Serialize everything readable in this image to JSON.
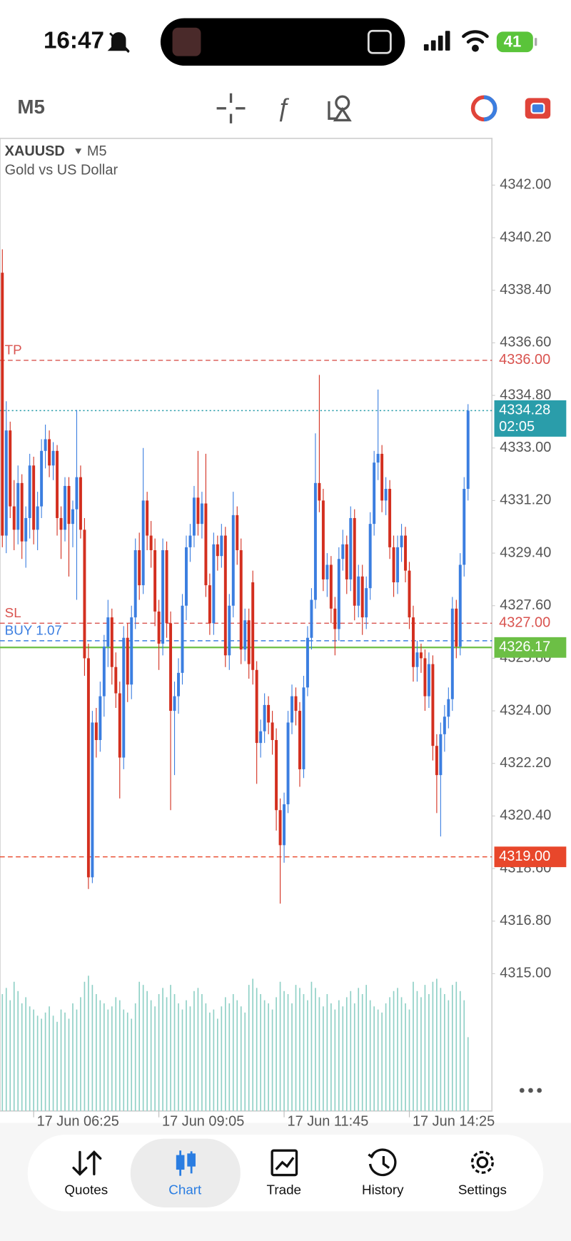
{
  "status_bar": {
    "time": "16:47",
    "battery": "41"
  },
  "toolbar": {
    "timeframe": "M5"
  },
  "chart_data": {
    "type": "candlestick",
    "symbol": "XAUUSD",
    "timeframe": "M5",
    "description": "Gold vs US Dollar",
    "colors": {
      "up": "#3b7ee0",
      "down": "#d32f1f",
      "volume": "#8fd0c6"
    },
    "xlim": [
      -0.6,
      125.1
    ],
    "xticks": [
      {
        "value": 8,
        "label": "17 Jun 06:25"
      },
      {
        "value": 40,
        "label": "17 Jun 09:05"
      },
      {
        "value": 72,
        "label": "17 Jun 11:45"
      },
      {
        "value": 104,
        "label": "17 Jun 14:25"
      }
    ],
    "ylim": [
      4310.3,
      4343.6
    ],
    "yticks": [
      {
        "value": 4342,
        "label": "4342.00"
      },
      {
        "value": 4340.2,
        "label": "4340.20"
      },
      {
        "value": 4338.4,
        "label": "4338.40"
      },
      {
        "value": 4336.6,
        "label": "4336.60"
      },
      {
        "value": 4334.8,
        "label": "4334.80"
      },
      {
        "value": 4333,
        "label": "4333.00"
      },
      {
        "value": 4331.2,
        "label": "4331.20"
      },
      {
        "value": 4329.4,
        "label": "4329.40"
      },
      {
        "value": 4327.6,
        "label": "4327.60"
      },
      {
        "value": 4325.8,
        "label": "4325.80"
      },
      {
        "value": 4324,
        "label": "4324.00"
      },
      {
        "value": 4322.2,
        "label": "4322.20"
      },
      {
        "value": 4320.4,
        "label": "4320.40"
      },
      {
        "value": 4318.6,
        "label": "4318.60"
      },
      {
        "value": 4316.8,
        "label": "4316.80"
      },
      {
        "value": 4315,
        "label": "4315.00"
      }
    ],
    "candles": [
      [
        4339.0,
        4339.8,
        4329.6,
        4330.0
      ],
      [
        4330.0,
        4334.6,
        4329.4,
        4333.6
      ],
      [
        4333.6,
        4333.9,
        4330.6,
        4331.0
      ],
      [
        4331.0,
        4331.9,
        4329.5,
        4330.2
      ],
      [
        4330.2,
        4332.4,
        4329.7,
        4331.8
      ],
      [
        4331.8,
        4332.1,
        4329.2,
        4329.8
      ],
      [
        4329.8,
        4331.0,
        4328.9,
        4330.6
      ],
      [
        4330.6,
        4332.8,
        4329.9,
        4332.4
      ],
      [
        4332.4,
        4332.7,
        4329.7,
        4330.2
      ],
      [
        4330.2,
        4331.5,
        4329.5,
        4331.0
      ],
      [
        4331.0,
        4333.3,
        4330.6,
        4332.9
      ],
      [
        4332.9,
        4333.8,
        4332.3,
        4333.3
      ],
      [
        4333.3,
        4333.6,
        4332.0,
        4332.4
      ],
      [
        4332.4,
        4333.2,
        4331.9,
        4332.9
      ],
      [
        4332.9,
        4333.1,
        4330.0,
        4330.6
      ],
      [
        4330.6,
        4331.0,
        4329.2,
        4330.2
      ],
      [
        4330.2,
        4332.0,
        4329.8,
        4331.7
      ],
      [
        4331.7,
        4332.0,
        4328.6,
        4330.4
      ],
      [
        4330.4,
        4331.2,
        4329.6,
        4330.9
      ],
      [
        4330.9,
        4334.3,
        4327.8,
        4332.0
      ],
      [
        4332.0,
        4332.4,
        4329.9,
        4330.2
      ],
      [
        4330.2,
        4330.6,
        4325.2,
        4325.8
      ],
      [
        4325.8,
        4326.3,
        4317.9,
        4318.3
      ],
      [
        4318.3,
        4324.0,
        4318.1,
        4323.6
      ],
      [
        4323.6,
        4324.1,
        4322.4,
        4323.0
      ],
      [
        4323.0,
        4325.0,
        4322.6,
        4324.5
      ],
      [
        4324.5,
        4326.6,
        4323.8,
        4326.2
      ],
      [
        4326.2,
        4327.8,
        4325.5,
        4327.2
      ],
      [
        4327.2,
        4327.5,
        4324.9,
        4325.5
      ],
      [
        4325.5,
        4326.0,
        4324.1,
        4324.6
      ],
      [
        4324.6,
        4325.0,
        4321.0,
        4322.4
      ],
      [
        4322.4,
        4326.9,
        4322.0,
        4326.5
      ],
      [
        4326.5,
        4327.0,
        4324.3,
        4324.9
      ],
      [
        4324.9,
        4327.6,
        4324.4,
        4327.2
      ],
      [
        4327.2,
        4329.9,
        4326.8,
        4329.5
      ],
      [
        4329.5,
        4330.1,
        4327.8,
        4328.3
      ],
      [
        4328.3,
        4333.0,
        4328.0,
        4331.2
      ],
      [
        4331.2,
        4331.5,
        4329.5,
        4330.0
      ],
      [
        4330.0,
        4330.5,
        4328.9,
        4329.5
      ],
      [
        4329.5,
        4329.9,
        4326.9,
        4327.4
      ],
      [
        4327.4,
        4327.8,
        4325.4,
        4326.3
      ],
      [
        4326.3,
        4329.9,
        4325.9,
        4329.5
      ],
      [
        4329.5,
        4329.8,
        4326.5,
        4327.0
      ],
      [
        4327.0,
        4327.4,
        4320.6,
        4324.0
      ],
      [
        4324.0,
        4325.0,
        4321.8,
        4324.5
      ],
      [
        4324.5,
        4325.8,
        4323.9,
        4325.3
      ],
      [
        4325.3,
        4328.0,
        4324.9,
        4327.6
      ],
      [
        4327.6,
        4330.0,
        4327.1,
        4329.6
      ],
      [
        4329.6,
        4330.4,
        4329.1,
        4330.0
      ],
      [
        4330.0,
        4331.7,
        4329.6,
        4331.3
      ],
      [
        4331.3,
        4332.9,
        4330.0,
        4330.4
      ],
      [
        4330.4,
        4331.5,
        4329.9,
        4331.1
      ],
      [
        4331.1,
        4332.8,
        4327.9,
        4328.3
      ],
      [
        4328.3,
        4328.7,
        4326.6,
        4327.0
      ],
      [
        4327.0,
        4330.1,
        4326.6,
        4329.7
      ],
      [
        4329.7,
        4330.0,
        4328.8,
        4329.3
      ],
      [
        4329.3,
        4330.4,
        4328.9,
        4330.0
      ],
      [
        4330.0,
        4330.3,
        4325.5,
        4325.9
      ],
      [
        4325.9,
        4328.0,
        4325.4,
        4327.6
      ],
      [
        4327.6,
        4331.5,
        4327.2,
        4330.7
      ],
      [
        4330.7,
        4331.0,
        4329.0,
        4329.5
      ],
      [
        4329.5,
        4329.9,
        4325.6,
        4326.1
      ],
      [
        4326.1,
        4327.5,
        4325.7,
        4327.1
      ],
      [
        4327.1,
        4327.5,
        4325.1,
        4325.6
      ],
      [
        4328.4,
        4328.8,
        4324.9,
        4325.4
      ],
      [
        4325.4,
        4325.7,
        4321.5,
        4322.9
      ],
      [
        4322.9,
        4323.7,
        4322.4,
        4323.3
      ],
      [
        4323.3,
        4324.6,
        4322.9,
        4324.2
      ],
      [
        4324.2,
        4324.5,
        4323.2,
        4323.6
      ],
      [
        4323.6,
        4324.0,
        4322.5,
        4323.0
      ],
      [
        4323.0,
        4323.4,
        4319.9,
        4320.6
      ],
      [
        4320.6,
        4321.0,
        4317.4,
        4319.4
      ],
      [
        4319.4,
        4321.2,
        4318.8,
        4320.8
      ],
      [
        4320.8,
        4324.0,
        4320.5,
        4323.6
      ],
      [
        4323.6,
        4324.9,
        4323.2,
        4324.5
      ],
      [
        4324.5,
        4324.8,
        4323.5,
        4324.0
      ],
      [
        4324.0,
        4324.3,
        4321.4,
        4322.0
      ],
      [
        4322.0,
        4325.2,
        4321.7,
        4324.8
      ],
      [
        4324.8,
        4326.9,
        4324.5,
        4326.5
      ],
      [
        4326.5,
        4328.2,
        4326.1,
        4327.8
      ],
      [
        4327.8,
        4333.5,
        4327.5,
        4331.8
      ],
      [
        4331.8,
        4335.5,
        4330.8,
        4331.2
      ],
      [
        4331.2,
        4331.6,
        4328.1,
        4328.5
      ],
      [
        4328.5,
        4329.4,
        4327.9,
        4329.0
      ],
      [
        4329.0,
        4329.3,
        4327.0,
        4327.5
      ],
      [
        4327.5,
        4327.9,
        4325.9,
        4326.8
      ],
      [
        4326.8,
        4329.6,
        4326.4,
        4329.2
      ],
      [
        4329.2,
        4330.2,
        4328.8,
        4329.7
      ],
      [
        4329.7,
        4330.0,
        4328.0,
        4328.5
      ],
      [
        4328.5,
        4331.0,
        4328.1,
        4330.6
      ],
      [
        4330.6,
        4330.9,
        4327.1,
        4327.6
      ],
      [
        4327.6,
        4329.0,
        4327.2,
        4328.6
      ],
      [
        4328.6,
        4329.0,
        4326.6,
        4327.2
      ],
      [
        4327.2,
        4328.6,
        4326.8,
        4328.2
      ],
      [
        4328.2,
        4330.8,
        4327.8,
        4330.4
      ],
      [
        4330.4,
        4332.9,
        4330.0,
        4332.5
      ],
      [
        4332.5,
        4335.0,
        4331.9,
        4332.8
      ],
      [
        4332.8,
        4333.1,
        4330.8,
        4331.2
      ],
      [
        4331.2,
        4332.0,
        4330.7,
        4331.6
      ],
      [
        4331.6,
        4331.9,
        4329.2,
        4329.6
      ],
      [
        4329.6,
        4330.0,
        4327.9,
        4328.4
      ],
      [
        4328.4,
        4330.0,
        4328.0,
        4329.6
      ],
      [
        4329.6,
        4330.4,
        4329.1,
        4330.0
      ],
      [
        4330.0,
        4330.3,
        4328.4,
        4328.8
      ],
      [
        4328.8,
        4329.1,
        4326.8,
        4327.2
      ],
      [
        4327.2,
        4327.6,
        4325.0,
        4325.5
      ],
      [
        4325.5,
        4326.4,
        4325.0,
        4326.0
      ],
      [
        4326.0,
        4326.3,
        4325.3,
        4325.8
      ],
      [
        4325.8,
        4326.1,
        4324.0,
        4324.5
      ],
      [
        4324.5,
        4326.0,
        4324.1,
        4325.6
      ],
      [
        4325.6,
        4325.9,
        4322.3,
        4322.8
      ],
      [
        4322.8,
        4323.2,
        4320.5,
        4321.8
      ],
      [
        4321.8,
        4323.6,
        4319.7,
        4323.2
      ],
      [
        4323.2,
        4324.2,
        4322.6,
        4323.8
      ],
      [
        4323.8,
        4324.8,
        4323.4,
        4324.4
      ],
      [
        4324.4,
        4327.9,
        4324.0,
        4327.5
      ],
      [
        4327.5,
        4327.8,
        4325.8,
        4326.2
      ],
      [
        4326.2,
        4329.4,
        4325.9,
        4329.0
      ],
      [
        4329.0,
        4332.0,
        4328.6,
        4331.6
      ],
      [
        4331.6,
        4334.5,
        4331.2,
        4334.28
      ]
    ],
    "volumes": [
      380,
      400,
      360,
      420,
      390,
      350,
      370,
      340,
      330,
      310,
      300,
      320,
      340,
      310,
      290,
      330,
      320,
      300,
      350,
      330,
      370,
      420,
      440,
      410,
      380,
      360,
      350,
      330,
      340,
      370,
      360,
      330,
      320,
      300,
      350,
      420,
      410,
      390,
      360,
      340,
      380,
      400,
      370,
      410,
      380,
      350,
      330,
      360,
      340,
      390,
      400,
      380,
      350,
      320,
      330,
      300,
      340,
      370,
      350,
      380,
      360,
      340,
      320,
      410,
      430,
      400,
      380,
      360,
      350,
      330,
      370,
      420,
      390,
      380,
      350,
      410,
      400,
      380,
      360,
      420,
      400,
      370,
      340,
      380,
      350,
      330,
      360,
      340,
      370,
      390,
      350,
      400,
      380,
      410,
      360,
      340,
      330,
      320,
      350,
      370,
      390,
      400,
      370,
      350,
      330,
      420,
      390,
      370,
      410,
      380,
      420,
      430,
      400,
      380,
      360,
      410,
      420,
      390,
      360,
      240
    ],
    "volume_lim": [
      0,
      450
    ],
    "levels": [
      {
        "name": "TP",
        "value": 4336,
        "label": "4336.00",
        "color": "#d9534f",
        "style": "dashed",
        "box": false
      },
      {
        "value": 4334.28,
        "label": "4334.28",
        "countdown": "02:05",
        "color": "#2a9daa",
        "style": "dotted",
        "box": true
      },
      {
        "name": "SL",
        "value": 4327,
        "label": "4327.00",
        "color": "#d9534f",
        "style": "dashed",
        "box": false
      },
      {
        "name": "BUY 1.07",
        "value": 4326.4,
        "color": "#3b7ee0",
        "style": "dashed",
        "box": false
      },
      {
        "value": 4326.17,
        "label": "4326.17",
        "color": "#6cbf45",
        "style": "solid",
        "box": true
      },
      {
        "value": 4319,
        "label": "4319.00",
        "color": "#e8472b",
        "style": "dashed",
        "box": true
      }
    ]
  },
  "nav": [
    "Quotes",
    "Chart",
    "Trade",
    "History",
    "Settings"
  ]
}
